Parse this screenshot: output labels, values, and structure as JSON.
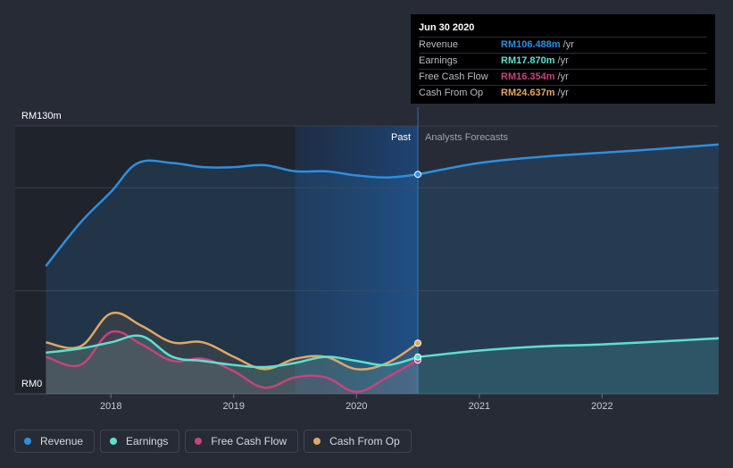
{
  "chart_data": {
    "type": "line",
    "title": "",
    "xlabel": "",
    "ylabel": "",
    "ylim": [
      0,
      130
    ],
    "y_unit": "RMm",
    "y_tick_labels": [
      "RM130m",
      "RM0"
    ],
    "x_tick_labels": [
      {
        "year": 2018,
        "label": "2018"
      },
      {
        "year": 2019,
        "label": "2019"
      },
      {
        "year": 2020,
        "label": "2020"
      },
      {
        "year": 2021,
        "label": "2021"
      },
      {
        "year": 2022,
        "label": "2022"
      }
    ],
    "x_range": [
      2017.22,
      2022.95
    ],
    "past_end": 2020.5,
    "highlight_start": 2019.5,
    "past_label": "Past",
    "forecast_label": "Analysts Forecasts",
    "series": [
      {
        "name": "Revenue",
        "color": "#2d8fe0",
        "filled": true,
        "past": [
          [
            2017.47,
            62
          ],
          [
            2017.75,
            83
          ],
          [
            2018.0,
            98
          ],
          [
            2018.22,
            112
          ],
          [
            2018.5,
            112
          ],
          [
            2018.75,
            110
          ],
          [
            2019.0,
            110
          ],
          [
            2019.25,
            111
          ],
          [
            2019.5,
            108
          ],
          [
            2019.75,
            108
          ],
          [
            2020.0,
            106
          ],
          [
            2020.25,
            105
          ],
          [
            2020.5,
            106.5
          ]
        ],
        "forecast": [
          [
            2020.5,
            106.5
          ],
          [
            2021.0,
            112
          ],
          [
            2021.5,
            115
          ],
          [
            2022.0,
            117
          ],
          [
            2022.5,
            119
          ],
          [
            2022.95,
            121
          ]
        ]
      },
      {
        "name": "Earnings",
        "color": "#5de0d0",
        "filled": true,
        "past": [
          [
            2017.47,
            20
          ],
          [
            2017.75,
            22
          ],
          [
            2018.0,
            25
          ],
          [
            2018.25,
            28
          ],
          [
            2018.5,
            18
          ],
          [
            2018.75,
            16
          ],
          [
            2019.0,
            14
          ],
          [
            2019.25,
            13
          ],
          [
            2019.5,
            15
          ],
          [
            2019.75,
            18
          ],
          [
            2020.0,
            16
          ],
          [
            2020.25,
            14
          ],
          [
            2020.5,
            17.9
          ]
        ],
        "forecast": [
          [
            2020.5,
            17.9
          ],
          [
            2021.0,
            21
          ],
          [
            2021.5,
            23
          ],
          [
            2022.0,
            24
          ],
          [
            2022.5,
            25.5
          ],
          [
            2022.95,
            27
          ]
        ]
      },
      {
        "name": "Free Cash Flow",
        "color": "#c7437c",
        "filled": false,
        "past": [
          [
            2017.47,
            18
          ],
          [
            2017.75,
            14
          ],
          [
            2018.0,
            30
          ],
          [
            2018.25,
            24
          ],
          [
            2018.5,
            16
          ],
          [
            2018.75,
            17
          ],
          [
            2019.0,
            11
          ],
          [
            2019.25,
            3
          ],
          [
            2019.5,
            8
          ],
          [
            2019.75,
            8
          ],
          [
            2020.0,
            1
          ],
          [
            2020.25,
            8
          ],
          [
            2020.5,
            16.4
          ]
        ],
        "forecast": []
      },
      {
        "name": "Cash From Op",
        "color": "#e0a863",
        "filled": false,
        "past": [
          [
            2017.47,
            25
          ],
          [
            2017.75,
            23
          ],
          [
            2018.0,
            39
          ],
          [
            2018.25,
            33
          ],
          [
            2018.5,
            25
          ],
          [
            2018.75,
            25
          ],
          [
            2019.0,
            18
          ],
          [
            2019.25,
            12
          ],
          [
            2019.5,
            17
          ],
          [
            2019.75,
            18
          ],
          [
            2020.0,
            12
          ],
          [
            2020.25,
            15
          ],
          [
            2020.5,
            24.6
          ]
        ],
        "forecast": []
      }
    ]
  },
  "tooltip": {
    "date": "Jun 30 2020",
    "unit": "/yr",
    "rows": [
      {
        "label": "Revenue",
        "value": "RM106.488m",
        "color": "#2d8fe0"
      },
      {
        "label": "Earnings",
        "value": "RM17.870m",
        "color": "#5de0d0"
      },
      {
        "label": "Free Cash Flow",
        "value": "RM16.354m",
        "color": "#c7437c"
      },
      {
        "label": "Cash From Op",
        "value": "RM24.637m",
        "color": "#e0a863"
      }
    ]
  },
  "legend": [
    {
      "label": "Revenue",
      "color": "#2d8fe0"
    },
    {
      "label": "Earnings",
      "color": "#5de0d0"
    },
    {
      "label": "Free Cash Flow",
      "color": "#c7437c"
    },
    {
      "label": "Cash From Op",
      "color": "#e0a863"
    }
  ]
}
